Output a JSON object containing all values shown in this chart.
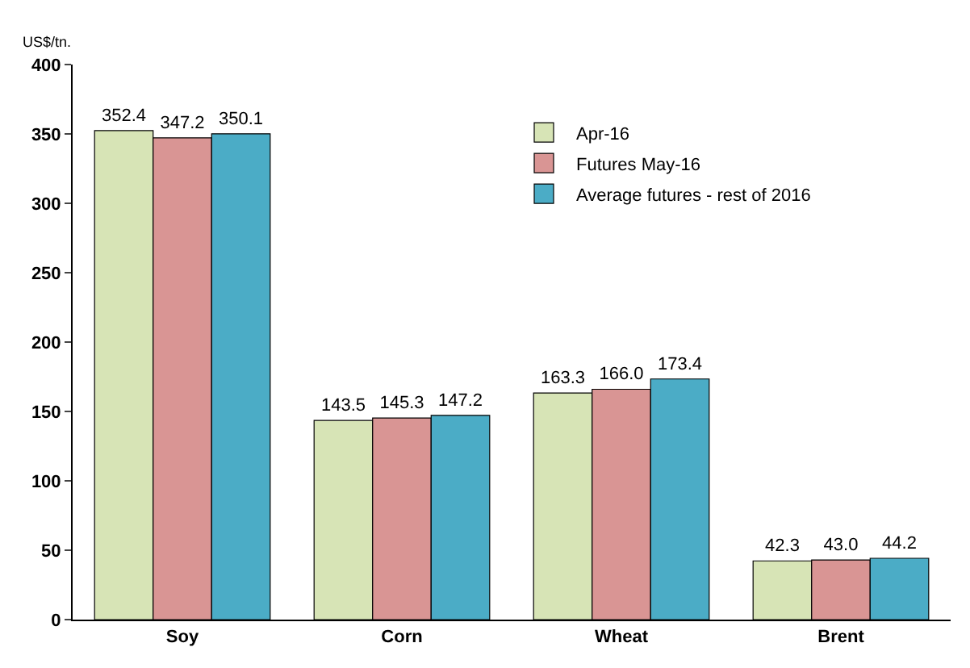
{
  "chart_data": {
    "type": "bar",
    "ylabel": "US$/tn.",
    "categories": [
      "Soy",
      "Corn",
      "Wheat",
      "Brent"
    ],
    "series": [
      {
        "name": "Apr-16",
        "color": "#d7e4b6",
        "values": [
          352.4,
          143.5,
          163.3,
          42.3
        ],
        "value_labels": [
          "352.4",
          "143.5",
          "163.3",
          "42.3"
        ]
      },
      {
        "name": "Futures May-16",
        "color": "#d99594",
        "values": [
          347.2,
          145.3,
          166.0,
          43.0
        ],
        "value_labels": [
          "347.2",
          "145.3",
          "166.0",
          "43.0"
        ]
      },
      {
        "name": "Average futures - rest of 2016",
        "color": "#4bacc6",
        "values": [
          350.1,
          147.2,
          173.4,
          44.2
        ],
        "value_labels": [
          "350.1",
          "147.2",
          "173.4",
          "44.2"
        ]
      }
    ],
    "ylim": [
      0,
      400
    ],
    "yticks": [
      0,
      50,
      100,
      150,
      200,
      250,
      300,
      350,
      400
    ],
    "legend": "top right"
  }
}
